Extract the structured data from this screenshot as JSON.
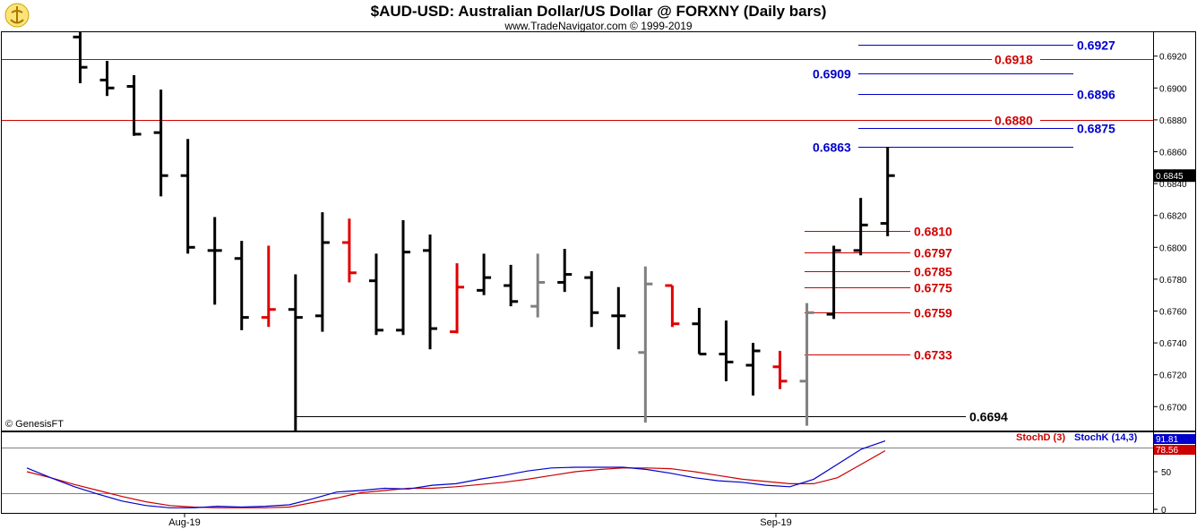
{
  "header": {
    "title": "$AUD-USD:  Australian Dollar/US Dollar @ FORXNY  (Daily bars)",
    "subtitle": "www.TradeNavigator.com © 1999-2019"
  },
  "footer": {
    "copyright": "© GenesisFT"
  },
  "colors": {
    "up": "#000000",
    "down": "#e00000",
    "neutral": "#808080",
    "blue_level": "#0000cc",
    "red_level": "#d00000",
    "stochD": "#cc0000",
    "stochK": "#0000cc"
  },
  "chart_data": [
    {
      "type": "ohlc",
      "x_tick_labels": [
        "Aug-19",
        "Sep-19"
      ],
      "ylim": [
        0.6685,
        0.6935
      ],
      "y_ticks": [
        "0.6700",
        "0.6720",
        "0.6740",
        "0.6760",
        "0.6780",
        "0.6800",
        "0.6820",
        "0.6840",
        "0.6860",
        "0.6880",
        "0.6900",
        "0.6920"
      ],
      "last_price": "0.6845",
      "bars": [
        {
          "o": 0.6932,
          "h": 0.6935,
          "l": 0.6903,
          "c": 0.6913,
          "color": "black"
        },
        {
          "o": 0.6905,
          "h": 0.6917,
          "l": 0.6895,
          "c": 0.69,
          "color": "black"
        },
        {
          "o": 0.6901,
          "h": 0.6908,
          "l": 0.687,
          "c": 0.6871,
          "color": "black"
        },
        {
          "o": 0.6872,
          "h": 0.6899,
          "l": 0.6832,
          "c": 0.6845,
          "color": "black"
        },
        {
          "o": 0.6845,
          "h": 0.6868,
          "l": 0.6796,
          "c": 0.68,
          "color": "black"
        },
        {
          "o": 0.6798,
          "h": 0.6819,
          "l": 0.6764,
          "c": 0.6798,
          "color": "black"
        },
        {
          "o": 0.6793,
          "h": 0.6804,
          "l": 0.6748,
          "c": 0.6756,
          "color": "black"
        },
        {
          "o": 0.6756,
          "h": 0.6801,
          "l": 0.675,
          "c": 0.6761,
          "color": "red"
        },
        {
          "o": 0.6761,
          "h": 0.6783,
          "l": 0.6685,
          "c": 0.6756,
          "color": "black"
        },
        {
          "o": 0.6757,
          "h": 0.6822,
          "l": 0.6747,
          "c": 0.6803,
          "color": "black"
        },
        {
          "o": 0.6803,
          "h": 0.6818,
          "l": 0.6778,
          "c": 0.6784,
          "color": "red"
        },
        {
          "o": 0.6779,
          "h": 0.6796,
          "l": 0.6745,
          "c": 0.6748,
          "color": "black"
        },
        {
          "o": 0.6748,
          "h": 0.6817,
          "l": 0.6745,
          "c": 0.6797,
          "color": "black"
        },
        {
          "o": 0.6798,
          "h": 0.6808,
          "l": 0.6736,
          "c": 0.6749,
          "color": "black"
        },
        {
          "o": 0.6747,
          "h": 0.679,
          "l": 0.6746,
          "c": 0.6775,
          "color": "red"
        },
        {
          "o": 0.6773,
          "h": 0.6796,
          "l": 0.677,
          "c": 0.6781,
          "color": "black"
        },
        {
          "o": 0.6776,
          "h": 0.6789,
          "l": 0.6763,
          "c": 0.6766,
          "color": "black"
        },
        {
          "o": 0.6763,
          "h": 0.6796,
          "l": 0.6756,
          "c": 0.6778,
          "color": "gray"
        },
        {
          "o": 0.6778,
          "h": 0.6799,
          "l": 0.6772,
          "c": 0.6783,
          "color": "black"
        },
        {
          "o": 0.6781,
          "h": 0.6785,
          "l": 0.675,
          "c": 0.6759,
          "color": "black"
        },
        {
          "o": 0.6757,
          "h": 0.6775,
          "l": 0.6736,
          "c": 0.6757,
          "color": "black"
        },
        {
          "o": 0.6734,
          "h": 0.6788,
          "l": 0.669,
          "c": 0.6777,
          "color": "gray"
        },
        {
          "o": 0.6776,
          "h": 0.6776,
          "l": 0.675,
          "c": 0.6752,
          "color": "red"
        },
        {
          "o": 0.6752,
          "h": 0.6762,
          "l": 0.6733,
          "c": 0.6733,
          "color": "black"
        },
        {
          "o": 0.6733,
          "h": 0.6754,
          "l": 0.6716,
          "c": 0.6728,
          "color": "black"
        },
        {
          "o": 0.6726,
          "h": 0.674,
          "l": 0.6707,
          "c": 0.6735,
          "color": "black"
        },
        {
          "o": 0.6725,
          "h": 0.6735,
          "l": 0.6711,
          "c": 0.6716,
          "color": "red"
        },
        {
          "o": 0.6716,
          "h": 0.6765,
          "l": 0.6688,
          "c": 0.6759,
          "color": "gray"
        },
        {
          "o": 0.6758,
          "h": 0.6801,
          "l": 0.6755,
          "c": 0.6798,
          "color": "black"
        },
        {
          "o": 0.6798,
          "h": 0.6831,
          "l": 0.6795,
          "c": 0.6814,
          "color": "black"
        },
        {
          "o": 0.6815,
          "h": 0.6863,
          "l": 0.6807,
          "c": 0.6845,
          "color": "black"
        }
      ],
      "levels": [
        {
          "value": 0.6927,
          "label": "0.6927",
          "color": "blue",
          "side": "right"
        },
        {
          "value": 0.6918,
          "label": "0.6918",
          "color": "red",
          "side": "right"
        },
        {
          "value": 0.6909,
          "label": "0.6909",
          "color": "blue",
          "side": "left"
        },
        {
          "value": 0.6896,
          "label": "0.6896",
          "color": "blue",
          "side": "right"
        },
        {
          "value": 0.688,
          "label": "0.6880",
          "color": "red",
          "side": "right"
        },
        {
          "value": 0.6875,
          "label": "0.6875",
          "color": "blue",
          "side": "right"
        },
        {
          "value": 0.6863,
          "label": "0.6863",
          "color": "blue",
          "side": "left"
        },
        {
          "value": 0.681,
          "label": "0.6810",
          "color": "red",
          "side": "right"
        },
        {
          "value": 0.6797,
          "label": "0.6797",
          "color": "red",
          "side": "right"
        },
        {
          "value": 0.6785,
          "label": "0.6785",
          "color": "red",
          "side": "right"
        },
        {
          "value": 0.6775,
          "label": "0.6775",
          "color": "red",
          "side": "right"
        },
        {
          "value": 0.6759,
          "label": "0.6759",
          "color": "red",
          "side": "right"
        },
        {
          "value": 0.6733,
          "label": "0.6733",
          "color": "red",
          "side": "right"
        },
        {
          "value": 0.6694,
          "label": "0.6694",
          "color": "black",
          "side": "right"
        }
      ]
    },
    {
      "type": "line",
      "ylim": [
        0,
        100
      ],
      "y_ticks": [
        "0",
        "50"
      ],
      "series": [
        {
          "name": "StochD (3)",
          "color": "red",
          "last_label": "78.56",
          "values": [
            50,
            42,
            33,
            25,
            17,
            10,
            5,
            3,
            2,
            2,
            2,
            3,
            9,
            15,
            22,
            25,
            28,
            28,
            30,
            33,
            36,
            40,
            45,
            50,
            53,
            55,
            55,
            54,
            50,
            45,
            40,
            37,
            34,
            34,
            42,
            60,
            78
          ]
        },
        {
          "name": "StochK (14,3)",
          "color": "blue",
          "last_label": "91.81",
          "values": [
            55,
            42,
            30,
            20,
            11,
            5,
            2,
            2,
            4,
            3,
            4,
            6,
            14,
            23,
            25,
            28,
            27,
            32,
            34,
            40,
            45,
            51,
            55,
            56,
            56,
            56,
            53,
            48,
            42,
            38,
            36,
            32,
            30,
            40,
            60,
            80,
            91
          ]
        }
      ]
    }
  ]
}
